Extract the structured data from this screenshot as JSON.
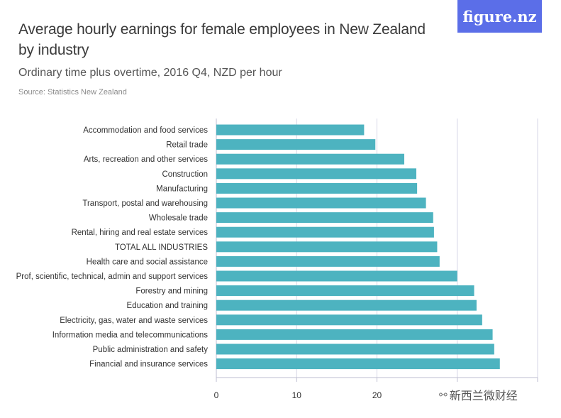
{
  "header": {
    "title": "Average hourly earnings for female employees in New Zealand by industry",
    "subtitle": "Ordinary time plus overtime, 2016 Q4, NZD per hour",
    "source": "Source: Statistics New Zealand",
    "logo": "figure.nz"
  },
  "watermark": {
    "text": "新西兰微财经",
    "icon": "wechat-icon"
  },
  "colors": {
    "bar": "#4db3c0",
    "grid": "#d6d6e6",
    "axis": "#bdbdd0",
    "label": "#333333"
  },
  "chart_data": {
    "type": "bar",
    "orientation": "horizontal",
    "title": "Average hourly earnings for female employees in New Zealand by industry",
    "xlabel": "",
    "ylabel": "",
    "xlim": [
      0,
      40
    ],
    "xticks": [
      0,
      10,
      20,
      30,
      40
    ],
    "xtick_labels": [
      "0",
      "10",
      "20",
      "",
      ""
    ],
    "grid": true,
    "categories": [
      "Accommodation and food services",
      "Retail trade",
      "Arts, recreation and other services",
      "Construction",
      "Manufacturing",
      "Transport, postal and warehousing",
      "Wholesale trade",
      "Rental, hiring and real estate services",
      "TOTAL ALL INDUSTRIES",
      "Health care and social assistance",
      "Prof, scientific, technical, admin and support services",
      "Forestry and mining",
      "Education and training",
      "Electricity, gas, water and waste services",
      "Information media and telecommunications",
      "Public administration and safety",
      "Financial and insurance services"
    ],
    "values": [
      18.4,
      19.8,
      23.4,
      24.9,
      25.0,
      26.1,
      27.0,
      27.1,
      27.5,
      27.8,
      30.0,
      32.1,
      32.4,
      33.1,
      34.4,
      34.6,
      35.3
    ]
  }
}
